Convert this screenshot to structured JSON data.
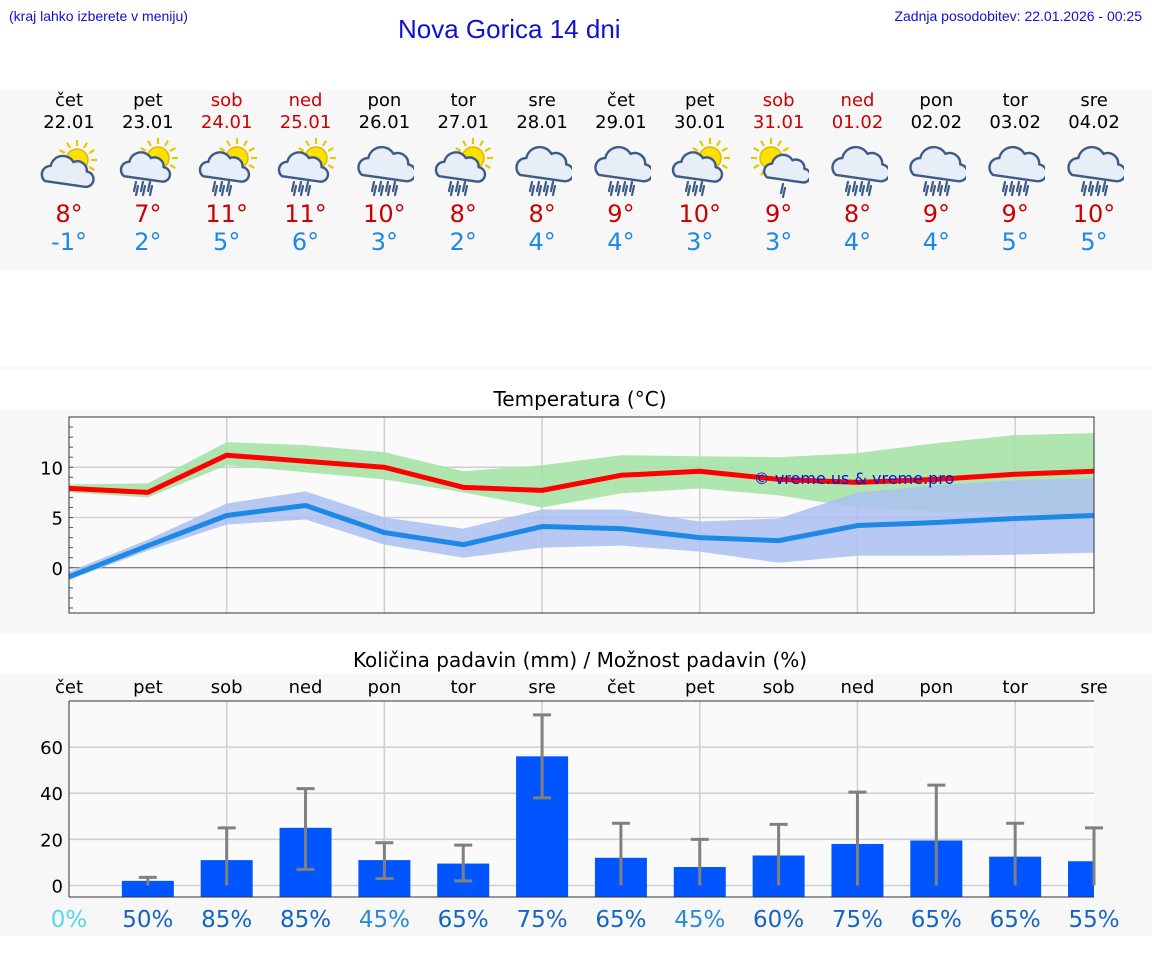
{
  "header": {
    "hint": "(kraj lahko izberete v meniju)",
    "title": "Nova Gorica 14 dni",
    "updated": "Zadnja posodobitev: 22.01.2026 - 00:25"
  },
  "colors": {
    "weekday": "#000000",
    "weekend": "#cc0000",
    "max_line": "#ff0000",
    "max_band": "#a6e3a6",
    "min_line": "#1e88e5",
    "min_band": "#aabff0",
    "bar": "#0055ff",
    "error": "#808080"
  },
  "days": [
    {
      "name": "čet",
      "date": "22.01",
      "weekend": false,
      "icon": "partly-cloudy-icon",
      "tmax": "8°",
      "tmin": "-1°"
    },
    {
      "name": "pet",
      "date": "23.01",
      "weekend": false,
      "icon": "sun-cloud-rain-icon",
      "tmax": "7°",
      "tmin": "2°"
    },
    {
      "name": "sob",
      "date": "24.01",
      "weekend": true,
      "icon": "sun-cloud-rain-icon",
      "tmax": "11°",
      "tmin": "5°"
    },
    {
      "name": "ned",
      "date": "25.01",
      "weekend": true,
      "icon": "sun-cloud-rain-icon",
      "tmax": "11°",
      "tmin": "6°"
    },
    {
      "name": "pon",
      "date": "26.01",
      "weekend": false,
      "icon": "cloud-rain-icon",
      "tmax": "10°",
      "tmin": "3°"
    },
    {
      "name": "tor",
      "date": "27.01",
      "weekend": false,
      "icon": "sun-cloud-rain-icon",
      "tmax": "8°",
      "tmin": "2°"
    },
    {
      "name": "sre",
      "date": "28.01",
      "weekend": false,
      "icon": "cloud-rain-icon",
      "tmax": "8°",
      "tmin": "4°"
    },
    {
      "name": "čet",
      "date": "29.01",
      "weekend": false,
      "icon": "cloud-rain-icon",
      "tmax": "9°",
      "tmin": "4°"
    },
    {
      "name": "pet",
      "date": "30.01",
      "weekend": false,
      "icon": "sun-cloud-rain-icon",
      "tmax": "10°",
      "tmin": "3°"
    },
    {
      "name": "sob",
      "date": "31.01",
      "weekend": true,
      "icon": "sun-cloud-light-rain-icon",
      "tmax": "9°",
      "tmin": "3°"
    },
    {
      "name": "ned",
      "date": "01.02",
      "weekend": true,
      "icon": "cloud-rain-icon",
      "tmax": "8°",
      "tmin": "4°"
    },
    {
      "name": "pon",
      "date": "02.02",
      "weekend": false,
      "icon": "cloud-rain-icon",
      "tmax": "9°",
      "tmin": "4°"
    },
    {
      "name": "tor",
      "date": "03.02",
      "weekend": false,
      "icon": "cloud-rain-icon",
      "tmax": "9°",
      "tmin": "5°"
    },
    {
      "name": "sre",
      "date": "04.02",
      "weekend": false,
      "icon": "cloud-rain-icon",
      "tmax": "10°",
      "tmin": "5°"
    }
  ],
  "chart_data": [
    {
      "type": "line",
      "title": "Temperatura (°C)",
      "watermark": "© vreme.us & vreme.pro",
      "x": [
        0,
        1,
        2,
        3,
        4,
        5,
        6,
        7,
        8,
        9,
        10,
        11,
        12,
        13
      ],
      "ylim": [
        -4.5,
        15
      ],
      "yticks": [
        0,
        5,
        10
      ],
      "grid": true,
      "series": [
        {
          "name": "max",
          "values": [
            7.9,
            7.5,
            11.2,
            10.6,
            10.0,
            8.0,
            7.7,
            9.2,
            9.6,
            8.8,
            8.5,
            8.8,
            9.3,
            9.6
          ],
          "band_low": [
            7.5,
            7.0,
            10.2,
            9.5,
            8.8,
            7.5,
            6.0,
            7.4,
            7.9,
            7.2,
            6.0,
            5.6,
            5.5,
            5.2
          ],
          "band_high": [
            8.3,
            8.4,
            12.5,
            12.2,
            11.5,
            9.6,
            10.2,
            11.2,
            11.1,
            11.0,
            11.4,
            12.4,
            13.2,
            13.4
          ]
        },
        {
          "name": "min",
          "values": [
            -0.9,
            2.2,
            5.2,
            6.2,
            3.5,
            2.3,
            4.1,
            3.9,
            3.0,
            2.7,
            4.2,
            4.5,
            4.9,
            5.2
          ],
          "band_low": [
            -1.2,
            1.7,
            4.3,
            4.8,
            2.3,
            1.0,
            2.0,
            2.2,
            1.6,
            0.5,
            1.2,
            1.2,
            1.3,
            1.5
          ],
          "band_high": [
            -0.4,
            2.8,
            6.4,
            7.6,
            5.0,
            3.9,
            5.8,
            5.8,
            4.6,
            4.9,
            7.5,
            8.2,
            8.7,
            8.9
          ]
        }
      ]
    },
    {
      "type": "bar",
      "title": "Količina padavin (mm) / Možnost padavin (%)",
      "categories": [
        "čet",
        "pet",
        "sob",
        "ned",
        "pon",
        "tor",
        "sre",
        "čet",
        "pet",
        "sob",
        "ned",
        "pon",
        "tor",
        "sre"
      ],
      "values": [
        0,
        2,
        11,
        25,
        11,
        9.5,
        56,
        12,
        8,
        13,
        18,
        19.5,
        12.5,
        10.5
      ],
      "err_low": [
        0,
        0,
        0,
        7,
        3,
        2,
        38,
        0,
        0,
        0,
        0,
        0,
        0,
        0
      ],
      "err_high": [
        0,
        3.5,
        25,
        42,
        18.5,
        17.5,
        74,
        27,
        20,
        26.5,
        40.5,
        43.5,
        27,
        25
      ],
      "probability": [
        "0%",
        "50%",
        "85%",
        "85%",
        "45%",
        "65%",
        "75%",
        "65%",
        "45%",
        "60%",
        "75%",
        "65%",
        "65%",
        "55%"
      ],
      "probability_colors": [
        "#55d8e8",
        "#1565c0",
        "#1565c0",
        "#1565c0",
        "#2a8ad8",
        "#1565c0",
        "#1565c0",
        "#1565c0",
        "#2a8ad8",
        "#1565c0",
        "#1565c0",
        "#1565c0",
        "#1565c0",
        "#1565c0"
      ],
      "ylim": [
        -5,
        80
      ],
      "yticks": [
        0,
        20,
        40,
        60
      ],
      "grid": true
    }
  ]
}
